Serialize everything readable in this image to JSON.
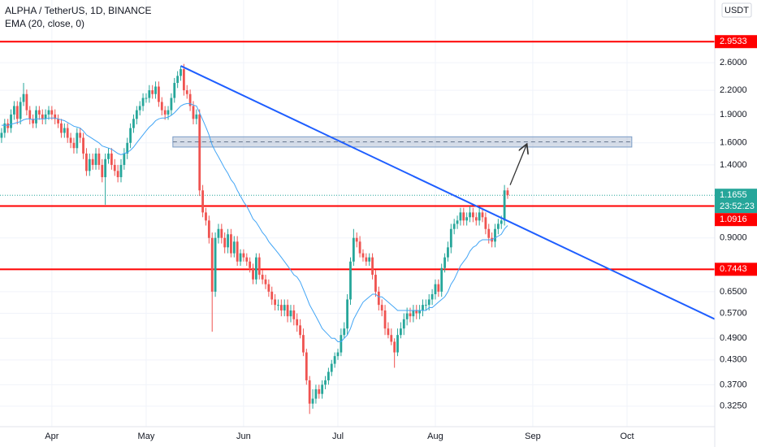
{
  "chart_data": {
    "type": "candlestick",
    "title": "ALPHA / TetherUS, 1D, BINANCE",
    "indicator_label": "EMA (20, close, 0)",
    "currency": "USDT",
    "log_scale": true,
    "grid": true,
    "up_color": "#26a69a",
    "down_color": "#ef5350",
    "xlim": [
      -0.5,
      226.9
    ],
    "xticks": [
      {
        "value": 16,
        "label": "Apr"
      },
      {
        "value": 46,
        "label": "May"
      },
      {
        "value": 77,
        "label": "Jun"
      },
      {
        "value": 107,
        "label": "Jul"
      },
      {
        "value": 138,
        "label": "Aug"
      },
      {
        "value": 169,
        "label": "Sep"
      },
      {
        "value": 199,
        "label": "Oct"
      }
    ],
    "ylim": [
      0.287,
      3.8
    ],
    "yticks": [
      {
        "value": 2.6,
        "label": "2.6000"
      },
      {
        "value": 2.2,
        "label": "2.2000"
      },
      {
        "value": 1.9,
        "label": "1.9000"
      },
      {
        "value": 1.6,
        "label": "1.6000"
      },
      {
        "value": 1.4,
        "label": "1.4000"
      },
      {
        "value": 0.9,
        "label": "0.9000"
      },
      {
        "value": 0.65,
        "label": "0.6500"
      },
      {
        "value": 0.57,
        "label": "0.5700"
      },
      {
        "value": 0.49,
        "label": "0.4900"
      },
      {
        "value": 0.43,
        "label": "0.4300"
      },
      {
        "value": 0.37,
        "label": "0.3700"
      },
      {
        "value": 0.325,
        "label": "0.3250"
      }
    ],
    "open": [
      1.65,
      1.7,
      1.8,
      1.75,
      1.9,
      2.0,
      1.85,
      2.05,
      2.15,
      1.95,
      1.85,
      1.8,
      1.95,
      1.9,
      1.85,
      1.9,
      1.95,
      1.9,
      1.85,
      1.8,
      1.7,
      1.75,
      1.65,
      1.6,
      1.55,
      1.7,
      1.65,
      1.5,
      1.35,
      1.45,
      1.4,
      1.5,
      1.4,
      1.3,
      1.45,
      1.5,
      1.4,
      1.35,
      1.3,
      1.4,
      1.5,
      1.6,
      1.75,
      1.85,
      1.95,
      2.0,
      2.1,
      2.1,
      2.2,
      2.15,
      2.25,
      2.05,
      1.95,
      1.9,
      1.95,
      2.1,
      2.3,
      2.4,
      2.5,
      2.2,
      2.15,
      2.0,
      1.85,
      1.9,
      1.2,
      1.05,
      1.0,
      0.9,
      0.65,
      0.9,
      0.95,
      0.9,
      0.85,
      0.92,
      0.82,
      0.88,
      0.78,
      0.82,
      0.8,
      0.78,
      0.75,
      0.7,
      0.8,
      0.72,
      0.7,
      0.68,
      0.65,
      0.62,
      0.6,
      0.6,
      0.58,
      0.6,
      0.56,
      0.58,
      0.55,
      0.53,
      0.5,
      0.45,
      0.38,
      0.33,
      0.34,
      0.36,
      0.35,
      0.37,
      0.38,
      0.4,
      0.42,
      0.44,
      0.45,
      0.5,
      0.52,
      0.62,
      0.78,
      0.9,
      0.88,
      0.82,
      0.8,
      0.78,
      0.8,
      0.72,
      0.65,
      0.6,
      0.58,
      0.52,
      0.5,
      0.48,
      0.45,
      0.5,
      0.52,
      0.55,
      0.57,
      0.56,
      0.58,
      0.57,
      0.58,
      0.6,
      0.6,
      0.62,
      0.64,
      0.68,
      0.65,
      0.75,
      0.8,
      0.85,
      0.95,
      0.98,
      1.0,
      1.05,
      1.0,
      1.02,
      1.05,
      1.02,
      1.0,
      1.05,
      1.02,
      0.95,
      0.9,
      0.88,
      0.95,
      0.98,
      1.0,
      1.2
    ],
    "high": [
      1.75,
      1.85,
      1.85,
      1.96,
      2.06,
      2.06,
      2.11,
      2.3,
      2.21,
      2.0,
      1.9,
      2.0,
      2.0,
      1.96,
      1.96,
      2.0,
      2.0,
      1.96,
      1.9,
      1.85,
      1.8,
      1.8,
      1.7,
      1.65,
      1.75,
      1.75,
      1.7,
      1.55,
      1.5,
      1.5,
      1.55,
      1.55,
      1.45,
      1.5,
      1.55,
      1.55,
      1.45,
      1.4,
      1.45,
      1.55,
      1.65,
      1.8,
      1.9,
      2.0,
      2.06,
      2.16,
      2.16,
      2.27,
      2.27,
      2.32,
      2.32,
      2.11,
      2.0,
      2.0,
      2.16,
      2.37,
      2.47,
      2.55,
      2.58,
      2.27,
      2.21,
      2.06,
      1.96,
      1.96,
      1.24,
      1.08,
      1.03,
      0.93,
      0.93,
      0.98,
      0.98,
      0.93,
      0.95,
      0.95,
      0.91,
      0.91,
      0.84,
      0.84,
      0.82,
      0.8,
      0.77,
      0.82,
      0.82,
      0.74,
      0.72,
      0.7,
      0.67,
      0.64,
      0.62,
      0.62,
      0.62,
      0.62,
      0.6,
      0.6,
      0.57,
      0.55,
      0.52,
      0.46,
      0.39,
      0.36,
      0.37,
      0.37,
      0.38,
      0.39,
      0.41,
      0.43,
      0.45,
      0.46,
      0.52,
      0.54,
      0.64,
      0.8,
      0.95,
      0.93,
      0.91,
      0.84,
      0.82,
      0.82,
      0.82,
      0.74,
      0.67,
      0.62,
      0.6,
      0.54,
      0.52,
      0.49,
      0.52,
      0.54,
      0.57,
      0.59,
      0.59,
      0.6,
      0.6,
      0.6,
      0.62,
      0.62,
      0.64,
      0.66,
      0.7,
      0.7,
      0.77,
      0.82,
      0.88,
      0.98,
      1.01,
      1.03,
      1.08,
      1.08,
      1.05,
      1.09,
      1.08,
      1.05,
      1.08,
      1.08,
      1.05,
      0.98,
      0.93,
      0.98,
      1.01,
      1.03,
      1.24,
      1.22
    ],
    "low": [
      1.6,
      1.65,
      1.7,
      1.7,
      1.84,
      1.79,
      1.79,
      2.0,
      1.89,
      1.79,
      1.75,
      1.75,
      1.84,
      1.79,
      1.79,
      1.84,
      1.84,
      1.79,
      1.75,
      1.65,
      1.65,
      1.6,
      1.55,
      1.5,
      1.5,
      1.6,
      1.45,
      1.31,
      1.31,
      1.36,
      1.36,
      1.36,
      1.26,
      1.1,
      1.41,
      1.36,
      1.31,
      1.26,
      1.26,
      1.36,
      1.45,
      1.55,
      1.7,
      1.79,
      1.89,
      1.94,
      2.04,
      2.04,
      2.09,
      2.09,
      1.99,
      1.89,
      1.84,
      1.84,
      1.89,
      2.04,
      2.23,
      2.33,
      2.13,
      2.09,
      1.94,
      1.79,
      1.79,
      1.16,
      1.02,
      0.97,
      0.87,
      0.51,
      0.63,
      0.87,
      0.87,
      0.82,
      0.82,
      0.8,
      0.8,
      0.76,
      0.76,
      0.78,
      0.76,
      0.73,
      0.68,
      0.68,
      0.7,
      0.68,
      0.66,
      0.63,
      0.6,
      0.58,
      0.58,
      0.56,
      0.56,
      0.54,
      0.54,
      0.53,
      0.51,
      0.49,
      0.44,
      0.37,
      0.31,
      0.32,
      0.33,
      0.34,
      0.34,
      0.36,
      0.37,
      0.39,
      0.41,
      0.43,
      0.44,
      0.49,
      0.5,
      0.6,
      0.76,
      0.85,
      0.8,
      0.78,
      0.76,
      0.76,
      0.7,
      0.63,
      0.58,
      0.56,
      0.5,
      0.49,
      0.47,
      0.41,
      0.44,
      0.49,
      0.5,
      0.53,
      0.54,
      0.54,
      0.55,
      0.55,
      0.56,
      0.58,
      0.58,
      0.6,
      0.62,
      0.63,
      0.63,
      0.73,
      0.78,
      0.82,
      0.92,
      0.95,
      0.97,
      0.97,
      0.97,
      0.99,
      0.99,
      0.97,
      0.97,
      0.99,
      0.92,
      0.87,
      0.85,
      0.85,
      0.92,
      0.95,
      0.97,
      1.14
    ],
    "close": [
      1.7,
      1.8,
      1.75,
      1.9,
      2.0,
      1.85,
      2.05,
      2.15,
      1.95,
      1.85,
      1.8,
      1.95,
      1.9,
      1.85,
      1.9,
      1.95,
      1.9,
      1.85,
      1.8,
      1.7,
      1.75,
      1.65,
      1.6,
      1.55,
      1.7,
      1.65,
      1.5,
      1.35,
      1.45,
      1.4,
      1.5,
      1.4,
      1.3,
      1.45,
      1.5,
      1.4,
      1.35,
      1.3,
      1.4,
      1.5,
      1.6,
      1.75,
      1.85,
      1.95,
      2.0,
      2.1,
      2.1,
      2.2,
      2.15,
      2.25,
      2.05,
      1.95,
      1.9,
      1.95,
      2.1,
      2.3,
      2.4,
      2.5,
      2.2,
      2.15,
      2.0,
      1.85,
      1.9,
      1.2,
      1.05,
      1.0,
      0.9,
      0.65,
      0.9,
      0.95,
      0.9,
      0.85,
      0.92,
      0.82,
      0.88,
      0.78,
      0.82,
      0.8,
      0.78,
      0.75,
      0.7,
      0.8,
      0.72,
      0.7,
      0.68,
      0.65,
      0.62,
      0.6,
      0.6,
      0.58,
      0.6,
      0.56,
      0.58,
      0.55,
      0.53,
      0.5,
      0.45,
      0.38,
      0.33,
      0.34,
      0.36,
      0.35,
      0.37,
      0.38,
      0.4,
      0.42,
      0.44,
      0.45,
      0.5,
      0.52,
      0.62,
      0.78,
      0.9,
      0.88,
      0.82,
      0.8,
      0.78,
      0.8,
      0.72,
      0.65,
      0.6,
      0.58,
      0.52,
      0.5,
      0.48,
      0.45,
      0.5,
      0.52,
      0.55,
      0.57,
      0.56,
      0.58,
      0.57,
      0.58,
      0.6,
      0.6,
      0.62,
      0.64,
      0.68,
      0.65,
      0.75,
      0.8,
      0.85,
      0.95,
      0.98,
      1.0,
      1.05,
      1.0,
      1.02,
      1.05,
      1.02,
      1.0,
      1.05,
      1.02,
      0.95,
      0.9,
      0.88,
      0.95,
      0.98,
      1.0,
      1.2,
      1.1655
    ],
    "ema": {
      "color": "#42a5f5",
      "values": [
        1.78,
        1.78,
        1.78,
        1.79,
        1.8,
        1.81,
        1.82,
        1.84,
        1.85,
        1.85,
        1.84,
        1.85,
        1.85,
        1.85,
        1.85,
        1.86,
        1.86,
        1.86,
        1.85,
        1.84,
        1.83,
        1.81,
        1.79,
        1.77,
        1.76,
        1.75,
        1.72,
        1.68,
        1.66,
        1.64,
        1.62,
        1.6,
        1.57,
        1.56,
        1.55,
        1.54,
        1.52,
        1.5,
        1.49,
        1.5,
        1.51,
        1.53,
        1.56,
        1.6,
        1.64,
        1.68,
        1.72,
        1.76,
        1.79,
        1.83,
        1.85,
        1.86,
        1.86,
        1.87,
        1.89,
        1.92,
        1.96,
        2.0,
        2.02,
        2.03,
        2.03,
        2.01,
        2.0,
        1.92,
        1.84,
        1.76,
        1.68,
        1.58,
        1.52,
        1.47,
        1.42,
        1.37,
        1.33,
        1.28,
        1.25,
        1.2,
        1.16,
        1.12,
        1.09,
        1.05,
        1.01,
        0.99,
        0.96,
        0.93,
        0.91,
        0.88,
        0.86,
        0.84,
        0.82,
        0.8,
        0.78,
        0.76,
        0.74,
        0.72,
        0.71,
        0.69,
        0.66,
        0.63,
        0.6,
        0.58,
        0.56,
        0.54,
        0.52,
        0.51,
        0.5,
        0.49,
        0.49,
        0.48,
        0.48,
        0.49,
        0.5,
        0.52,
        0.55,
        0.57,
        0.59,
        0.61,
        0.62,
        0.63,
        0.64,
        0.64,
        0.63,
        0.63,
        0.62,
        0.61,
        0.6,
        0.59,
        0.58,
        0.58,
        0.58,
        0.58,
        0.58,
        0.58,
        0.58,
        0.58,
        0.58,
        0.58,
        0.59,
        0.59,
        0.6,
        0.61,
        0.62,
        0.63,
        0.65,
        0.68,
        0.7,
        0.73,
        0.76,
        0.78,
        0.8,
        0.83,
        0.85,
        0.86,
        0.88,
        0.89,
        0.89,
        0.89,
        0.89,
        0.9,
        0.91,
        0.92,
        0.95,
        0.97
      ]
    },
    "levels": [
      2.9533,
      1.0916,
      0.7443
    ],
    "level_color": "#ff0000",
    "last_price": 1.1655,
    "countdown": "23:52:23",
    "last_color": "#26a69a",
    "trendline": {
      "color": "#1e5eff",
      "x": [
        57,
        227
      ],
      "y": [
        2.55,
        0.55
      ]
    },
    "zone": {
      "x": [
        54.5,
        200.5
      ],
      "y": [
        1.56,
        1.66
      ],
      "mid": 1.61
    },
    "arrow": {
      "x": [
        161.8,
        167
      ],
      "y": [
        1.24,
        1.58
      ]
    }
  }
}
